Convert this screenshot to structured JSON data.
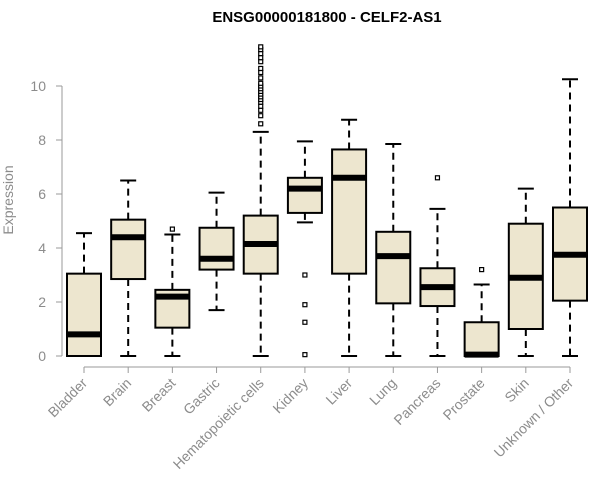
{
  "chart_data": {
    "type": "boxplot",
    "title": "ENSG00000181800 - CELF2-AS1",
    "xlabel": "",
    "ylabel": "Expression",
    "ylim": [
      0,
      11.5
    ],
    "yticks": [
      0,
      2,
      4,
      6,
      8,
      10
    ],
    "box_fill": "#ede6cf",
    "categories": [
      "Bladder",
      "Brain",
      "Breast",
      "Gastric",
      "Hematopoietic cells",
      "Kidney",
      "Liver",
      "Lung",
      "Pancreas",
      "Prostate",
      "Skin",
      "Unknown / Other"
    ],
    "boxes": [
      {
        "name": "Bladder",
        "min": 0,
        "q1": 0,
        "median": 0.8,
        "q3": 3.05,
        "max": 4.55,
        "outliers": []
      },
      {
        "name": "Brain",
        "min": 0,
        "q1": 2.85,
        "median": 4.4,
        "q3": 5.05,
        "max": 6.5,
        "outliers": []
      },
      {
        "name": "Breast",
        "min": 0,
        "q1": 1.05,
        "median": 2.2,
        "q3": 2.45,
        "max": 4.5,
        "outliers": [
          4.7
        ]
      },
      {
        "name": "Gastric",
        "min": 1.7,
        "q1": 3.2,
        "median": 3.6,
        "q3": 4.75,
        "max": 6.05,
        "outliers": []
      },
      {
        "name": "Hematopoietic cells",
        "min": 0,
        "q1": 3.05,
        "median": 4.15,
        "q3": 5.2,
        "max": 8.3,
        "outliers": [
          8.6,
          8.9,
          9.1,
          9.25,
          9.4,
          9.5,
          9.6,
          9.7,
          9.8,
          9.9,
          10.0,
          10.1,
          10.3,
          10.5,
          10.65,
          10.9,
          11.05,
          11.2,
          11.35,
          11.45
        ]
      },
      {
        "name": "Kidney",
        "min": 4.95,
        "q1": 5.3,
        "median": 6.2,
        "q3": 6.6,
        "max": 7.95,
        "outliers": [
          3.0,
          1.9,
          1.25,
          0.05
        ]
      },
      {
        "name": "Liver",
        "min": 0,
        "q1": 3.05,
        "median": 6.6,
        "q3": 7.65,
        "max": 8.75,
        "outliers": []
      },
      {
        "name": "Lung",
        "min": 0,
        "q1": 1.95,
        "median": 3.7,
        "q3": 4.6,
        "max": 7.85,
        "outliers": []
      },
      {
        "name": "Pancreas",
        "min": 0,
        "q1": 1.85,
        "median": 2.55,
        "q3": 3.25,
        "max": 5.45,
        "outliers": [
          6.6
        ]
      },
      {
        "name": "Prostate",
        "min": 0,
        "q1": 0,
        "median": 0.05,
        "q3": 1.25,
        "max": 2.65,
        "outliers": [
          3.2
        ]
      },
      {
        "name": "Skin",
        "min": 0,
        "q1": 1.0,
        "median": 2.9,
        "q3": 4.9,
        "max": 6.2,
        "outliers": []
      },
      {
        "name": "Unknown / Other",
        "min": 0,
        "q1": 2.05,
        "median": 3.75,
        "q3": 5.5,
        "max": 10.25,
        "outliers": []
      }
    ]
  }
}
